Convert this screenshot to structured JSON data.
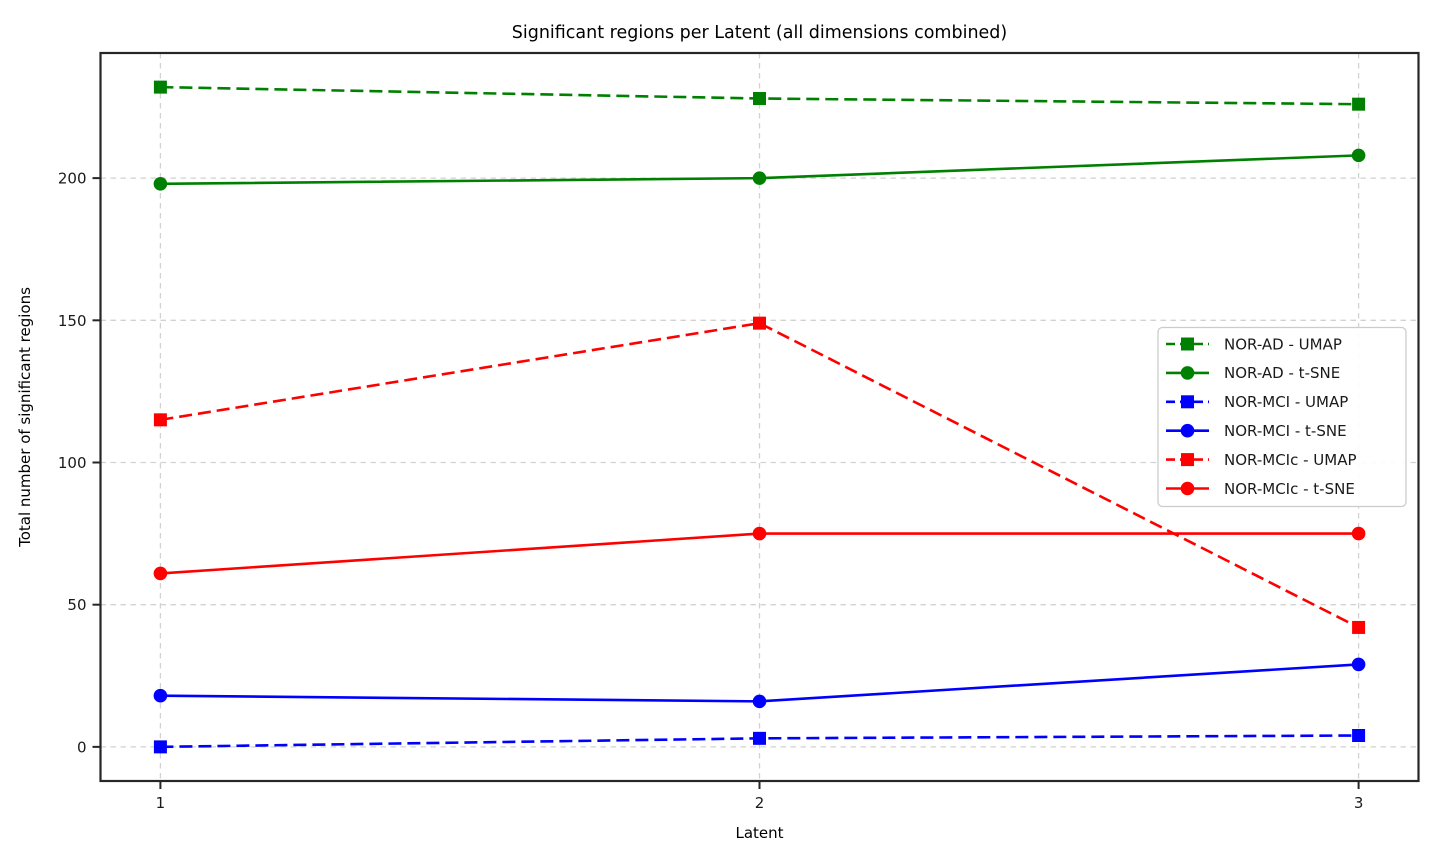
{
  "figure": {
    "background": "#ffffff"
  },
  "chart_data": {
    "type": "line",
    "title": "Significant regions per Latent (all dimensions combined)",
    "xlabel": "Latent",
    "ylabel": "Total number of significant regions",
    "x": [
      1,
      2,
      3
    ],
    "xtick_labels": [
      "1",
      "2",
      "3"
    ],
    "yticks": [
      0,
      50,
      100,
      150,
      200
    ],
    "xlim": [
      0.9,
      3.1
    ],
    "ylim": [
      -12,
      244
    ],
    "grid": true,
    "legend_position": "center right",
    "colors": {
      "green": "#008000",
      "blue": "#0000ff",
      "red": "#ff0000",
      "gridline": "#d2d2d2",
      "spine": "#262626"
    },
    "series": [
      {
        "name": "NOR-AD - UMAP",
        "color": "#008000",
        "linestyle": "dashed",
        "marker": "square",
        "values": [
          232,
          228,
          226
        ]
      },
      {
        "name": "NOR-AD - t-SNE",
        "color": "#008000",
        "linestyle": "solid",
        "marker": "circle",
        "values": [
          198,
          200,
          208
        ]
      },
      {
        "name": "NOR-MCI - UMAP",
        "color": "#0000ff",
        "linestyle": "dashed",
        "marker": "square",
        "values": [
          0,
          3,
          4
        ]
      },
      {
        "name": "NOR-MCI - t-SNE",
        "color": "#0000ff",
        "linestyle": "solid",
        "marker": "circle",
        "values": [
          18,
          16,
          29
        ]
      },
      {
        "name": "NOR-MCIc - UMAP",
        "color": "#ff0000",
        "linestyle": "dashed",
        "marker": "square",
        "values": [
          115,
          149,
          42
        ]
      },
      {
        "name": "NOR-MCIc - t-SNE",
        "color": "#ff0000",
        "linestyle": "solid",
        "marker": "circle",
        "values": [
          61,
          75,
          75
        ]
      }
    ]
  }
}
